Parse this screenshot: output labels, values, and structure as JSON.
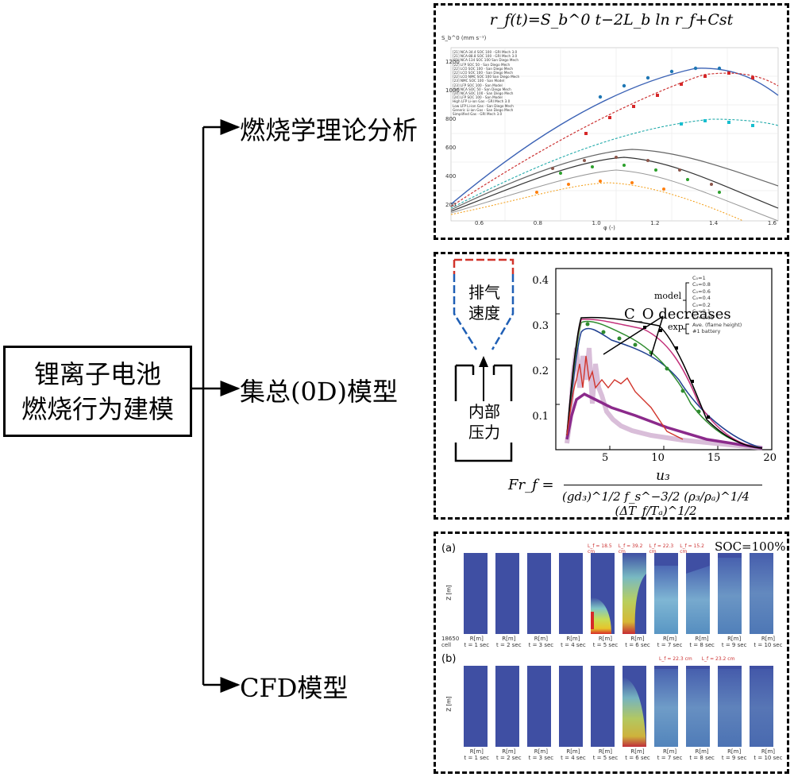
{
  "root": {
    "line1": "锂离子电池",
    "line2": "燃烧行为建模"
  },
  "branches": [
    {
      "label": "燃烧学理论分析"
    },
    {
      "label": "集总(0D)模型"
    },
    {
      "label": "CFD模型"
    }
  ],
  "panel1": {
    "formula": "r_f(t)=S_b^0 t−2L_b ln r_f+Cst",
    "ylabel": "S_b^0 (mm s⁻¹)",
    "xlabel": "φ (-)",
    "yticks": [
      "200",
      "400",
      "600",
      "800",
      "1000",
      "1200"
    ],
    "xticks": [
      "0.6",
      "0.8",
      "1.0",
      "1.2",
      "1.4",
      "1.6"
    ],
    "legend": [
      "[21] NCA-34.4 SOC 100 - GRI Mech 3.0",
      "[21] NCA-88.8 SOC 100 - GRI Mech 3.0",
      "[21] NCA-134 SOC 100 San Diego Mech",
      "[22] LFP SOC 50 - San Diego Mech",
      "[22] LCO SOC 100 - San Diego Mech",
      "[22] LCO SOC 100 - San Diego Mech",
      "[22] LCO NMC SOC 100 San Diego Mech",
      "[23] NMC SOC 100 - San Model",
      "[23] LFP SOC 100 - San Model",
      "[24] NCA SOC 50 - San Diego Mech",
      "[24] NCA SOC 100 - San Diego Mech",
      "[24] LFP SOC 100 - San Model",
      "High LFP Li-ion Gas - GRI Mech 3.0",
      "Low LFP Li-ion Gas - San Diego Mech",
      "Generic Li-ion Gas - San Diego Mech",
      "Simplified Gas - GRI Mech 3.0"
    ]
  },
  "panel2": {
    "box_top_label1": "排气",
    "box_top_label2": "速度",
    "box_bottom_label1": "内部",
    "box_bottom_label2": "压力",
    "yticks": [
      "0.1",
      "0.2",
      "0.3",
      "0.4"
    ],
    "xticks": [
      "5",
      "10",
      "15",
      "20"
    ],
    "annotation": "C_O decreases",
    "model_label": "model",
    "exp_label": "exp",
    "legend": [
      "C₀=1",
      "C₀=0.8",
      "C₀=0.6",
      "C₀=0.4",
      "C₀=0.2",
      "C₀=0.1",
      "C₀=0.05",
      "Ave. (flame height)",
      "#1 battery"
    ],
    "formula_left": "Fr_f =",
    "formula_num": "u₃",
    "formula_den": "(gd₃)^1/2 f_s^−3/2 (ρ₃/ρₐ)^1/4 (ΔT_f/Tₐ)^1/2"
  },
  "panel3": {
    "label_a": "(a)",
    "label_b": "(b)",
    "soc": "SOC=100%",
    "zlabel": "Z [m]",
    "cell_label": "18650 cell",
    "times": [
      "t = 1 sec",
      "t = 2 sec",
      "t = 3 sec",
      "t = 4 sec",
      "t = 5 sec",
      "t = 6 sec",
      "t = 7 sec",
      "t = 8 sec",
      "t = 9 sec",
      "t = 10 sec"
    ],
    "rlabel": "R[m]",
    "flame_heights_a": [
      "L_f = 18.5 cm",
      "L_f = 39.2 cm",
      "L_f = 22.3 cm",
      "L_f = 15.2 cm"
    ],
    "flame_heights_b": [
      "L_f = 22.3 cm",
      "L_f = 23.2 cm"
    ]
  },
  "colors": {
    "cfd_blue": "#3f4fa3",
    "chart1_red": "#d62728",
    "chart1_blue": "#1f77b4",
    "chart2_red": "#d1342b",
    "chart2_purple": "#8b2a8b",
    "chart2_green": "#2e8b2e"
  }
}
